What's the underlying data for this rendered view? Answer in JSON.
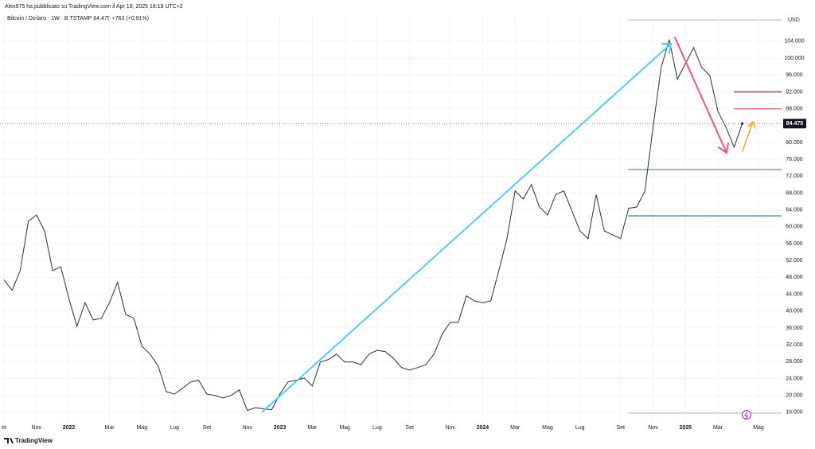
{
  "header": {
    "author_line": "Alex975 ha pubblicato su TradingView.com il Apr 18, 2025 18:19 UTC+2",
    "symbol_line": "Bitcoin / Dollaro · 1W · BITSTAMP  84.475  +763 (+0,91%)"
  },
  "chart_data": {
    "type": "line",
    "currency": "USD",
    "color": "#2a2e39",
    "grid": true,
    "categories": [
      "et",
      null,
      null,
      null,
      "Nov",
      null,
      null,
      null,
      "2022",
      null,
      null,
      null,
      null,
      "Mar",
      null,
      null,
      null,
      "Mag",
      null,
      null,
      null,
      "Lug",
      null,
      null,
      null,
      "Set",
      null,
      null,
      null,
      null,
      "Nov",
      null,
      null,
      null,
      "2023",
      null,
      null,
      null,
      "Mar",
      null,
      null,
      null,
      "Mag",
      null,
      null,
      null,
      "Lug",
      null,
      null,
      null,
      "Set",
      null,
      null,
      null,
      null,
      "Nov",
      null,
      null,
      null,
      "2024",
      null,
      null,
      null,
      "Mar",
      null,
      null,
      null,
      "Mag",
      null,
      null,
      null,
      "Lug",
      null,
      null,
      null,
      null,
      "Set",
      null,
      null,
      null,
      "Nov",
      null,
      null,
      null,
      "2025",
      null,
      null,
      null,
      "Mar",
      null,
      null,
      null,
      null,
      "Mag"
    ],
    "values": [
      47400,
      44900,
      49600,
      61300,
      62800,
      59000,
      49600,
      50500,
      43000,
      36400,
      42000,
      37900,
      38300,
      42000,
      46800,
      39200,
      38300,
      31700,
      29800,
      27000,
      20900,
      20300,
      21700,
      23200,
      23600,
      20300,
      20000,
      19400,
      20000,
      21300,
      16400,
      17100,
      16800,
      16600,
      20300,
      23200,
      23600,
      24100,
      22200,
      27900,
      28500,
      29800,
      27900,
      27900,
      27300,
      29800,
      30700,
      30400,
      28800,
      26600,
      26000,
      26600,
      27300,
      29800,
      34500,
      37300,
      37300,
      43600,
      42400,
      42000,
      42400,
      49600,
      57200,
      68500,
      66600,
      70000,
      64700,
      62800,
      67600,
      68500,
      63800,
      59000,
      57200,
      67600,
      59000,
      58100,
      57200,
      64400,
      64700,
      68500,
      83600,
      97800,
      104400,
      95000,
      98700,
      102500,
      97800,
      95900,
      87400,
      83600,
      78900,
      84475,
      null,
      null
    ],
    "last_price_label": "84.475",
    "ylim": [
      13700,
      110400
    ],
    "yticks": [
      {
        "value": 16000,
        "label": "16.000"
      },
      {
        "value": 20000,
        "label": "20.000"
      },
      {
        "value": 24000,
        "label": "24.000"
      },
      {
        "value": 28000,
        "label": "28.000"
      },
      {
        "value": 32000,
        "label": "32.000"
      },
      {
        "value": 36000,
        "label": "36.000"
      },
      {
        "value": 40000,
        "label": "40.000"
      },
      {
        "value": 44000,
        "label": "44.000"
      },
      {
        "value": 48000,
        "label": "48.000"
      },
      {
        "value": 52000,
        "label": "52.000"
      },
      {
        "value": 56000,
        "label": "56.000"
      },
      {
        "value": 60000,
        "label": "60.000"
      },
      {
        "value": 64000,
        "label": "64.000"
      },
      {
        "value": 68000,
        "label": "68.000"
      },
      {
        "value": 72000,
        "label": "72.000"
      },
      {
        "value": 76000,
        "label": "76.000"
      },
      {
        "value": 80000,
        "label": "80.000"
      },
      {
        "value": 84000,
        "label": "84.000"
      },
      {
        "value": 88000,
        "label": "88.000"
      },
      {
        "value": 92000,
        "label": "92.000"
      },
      {
        "value": 96000,
        "label": "96.000"
      },
      {
        "value": 100000,
        "label": "100.000"
      },
      {
        "value": 104000,
        "label": "104.000"
      }
    ],
    "levels": [
      {
        "value": 92000,
        "color": "#b22833"
      },
      {
        "value": 88000,
        "color": "#f05a6a"
      },
      {
        "value": 73600,
        "color": "#4caf50"
      },
      {
        "value": 62600,
        "color": "#2962ff"
      }
    ]
  },
  "footer": {
    "brand": "TradingView"
  }
}
